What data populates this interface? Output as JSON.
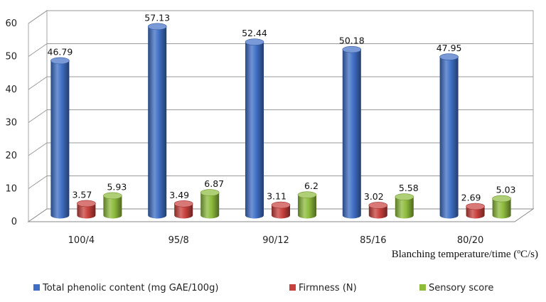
{
  "chart_data": {
    "type": "bar",
    "style": "3d-cylinder",
    "categories": [
      "100/4",
      "95/8",
      "90/12",
      "85/16",
      "80/20"
    ],
    "series": [
      {
        "name": "Total phenolic content (mg GAE/100g)",
        "color": "#3f6fc5",
        "values": [
          46.79,
          57.13,
          52.44,
          50.18,
          47.95
        ]
      },
      {
        "name": "Firmness (N)",
        "color": "#c8403c",
        "values": [
          3.57,
          3.49,
          3.11,
          3.02,
          2.69
        ]
      },
      {
        "name": "Sensory score",
        "color": "#8dbb3c",
        "values": [
          5.93,
          6.87,
          6.2,
          5.58,
          5.03
        ]
      }
    ],
    "data_labels": {
      "s0": [
        "46.79",
        "57.13",
        "52.44",
        "50.18",
        "47.95"
      ],
      "s1": [
        "3.57",
        "3.49",
        "3.11",
        "3.02",
        "2.69"
      ],
      "s2": [
        "5.93",
        "6.87",
        "6.2",
        "5.58",
        "5.03"
      ]
    },
    "xlabel": "Blanching temperature/time (ºC/s)",
    "ylabel": "",
    "ylim": [
      0,
      60
    ],
    "yticks": [
      "0",
      "10",
      "20",
      "30",
      "40",
      "50",
      "60"
    ],
    "grid": true,
    "legend_position": "bottom"
  }
}
